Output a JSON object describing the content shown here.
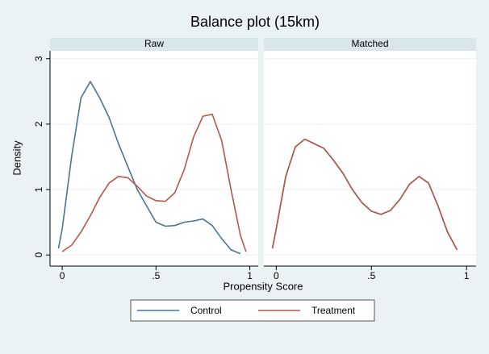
{
  "title": "Balance plot (15km)",
  "x_label": "Propensity Score",
  "y_label": "Density",
  "chart_data": [
    {
      "type": "line",
      "title": "Raw",
      "x": [
        -0.02,
        0,
        0.05,
        0.1,
        0.15,
        0.2,
        0.25,
        0.3,
        0.35,
        0.4,
        0.45,
        0.5,
        0.55,
        0.6,
        0.65,
        0.7,
        0.75,
        0.8,
        0.85,
        0.9,
        0.95,
        0.98
      ],
      "series": [
        {
          "name": "Control",
          "color": "#4a7490",
          "values": [
            0.1,
            0.4,
            1.5,
            2.4,
            2.65,
            2.4,
            2.1,
            1.7,
            1.35,
            1.0,
            0.75,
            0.5,
            0.44,
            0.45,
            0.5,
            0.52,
            0.55,
            0.45,
            0.25,
            0.08,
            0.02,
            null
          ]
        },
        {
          "name": "Treatment",
          "color": "#b5574d",
          "values": [
            null,
            0.05,
            0.15,
            0.35,
            0.6,
            0.88,
            1.1,
            1.2,
            1.18,
            1.05,
            0.9,
            0.83,
            0.82,
            0.95,
            1.3,
            1.8,
            2.12,
            2.15,
            1.75,
            1.0,
            0.3,
            0.05
          ]
        }
      ],
      "xlim": [
        -0.065,
        1.045
      ],
      "ylim": [
        -0.17,
        3.12
      ],
      "xticks": [
        0,
        {
          "value": 0.5,
          "label": ".5"
        },
        1
      ],
      "yticks": [
        0,
        1,
        2,
        3
      ],
      "grid": true
    },
    {
      "type": "line",
      "title": "Matched",
      "x": [
        -0.02,
        0,
        0.05,
        0.1,
        0.15,
        0.2,
        0.25,
        0.3,
        0.35,
        0.4,
        0.45,
        0.5,
        0.55,
        0.6,
        0.65,
        0.7,
        0.75,
        0.8,
        0.85,
        0.9,
        0.95,
        0.98
      ],
      "series": [
        {
          "name": "Control",
          "color": "#4a7490",
          "values": [
            0.1,
            0.4,
            1.2,
            1.65,
            1.77,
            1.7,
            1.63,
            1.45,
            1.25,
            1.0,
            0.8,
            0.67,
            0.62,
            0.68,
            0.85,
            1.08,
            1.2,
            1.1,
            0.75,
            0.35,
            0.08,
            null
          ]
        },
        {
          "name": "Treatment",
          "color": "#b5574d",
          "values": [
            0.1,
            0.4,
            1.2,
            1.65,
            1.77,
            1.7,
            1.63,
            1.45,
            1.25,
            1.0,
            0.8,
            0.67,
            0.62,
            0.68,
            0.85,
            1.08,
            1.2,
            1.1,
            0.75,
            0.35,
            0.08,
            null
          ]
        }
      ],
      "xlim": [
        -0.065,
        1.05
      ],
      "ylim": [
        -0.17,
        3.12
      ],
      "xticks": [
        0,
        {
          "value": 0.5,
          "label": ".5"
        },
        1
      ],
      "yticks": [
        0,
        1,
        2,
        3
      ],
      "grid": true
    }
  ]
}
